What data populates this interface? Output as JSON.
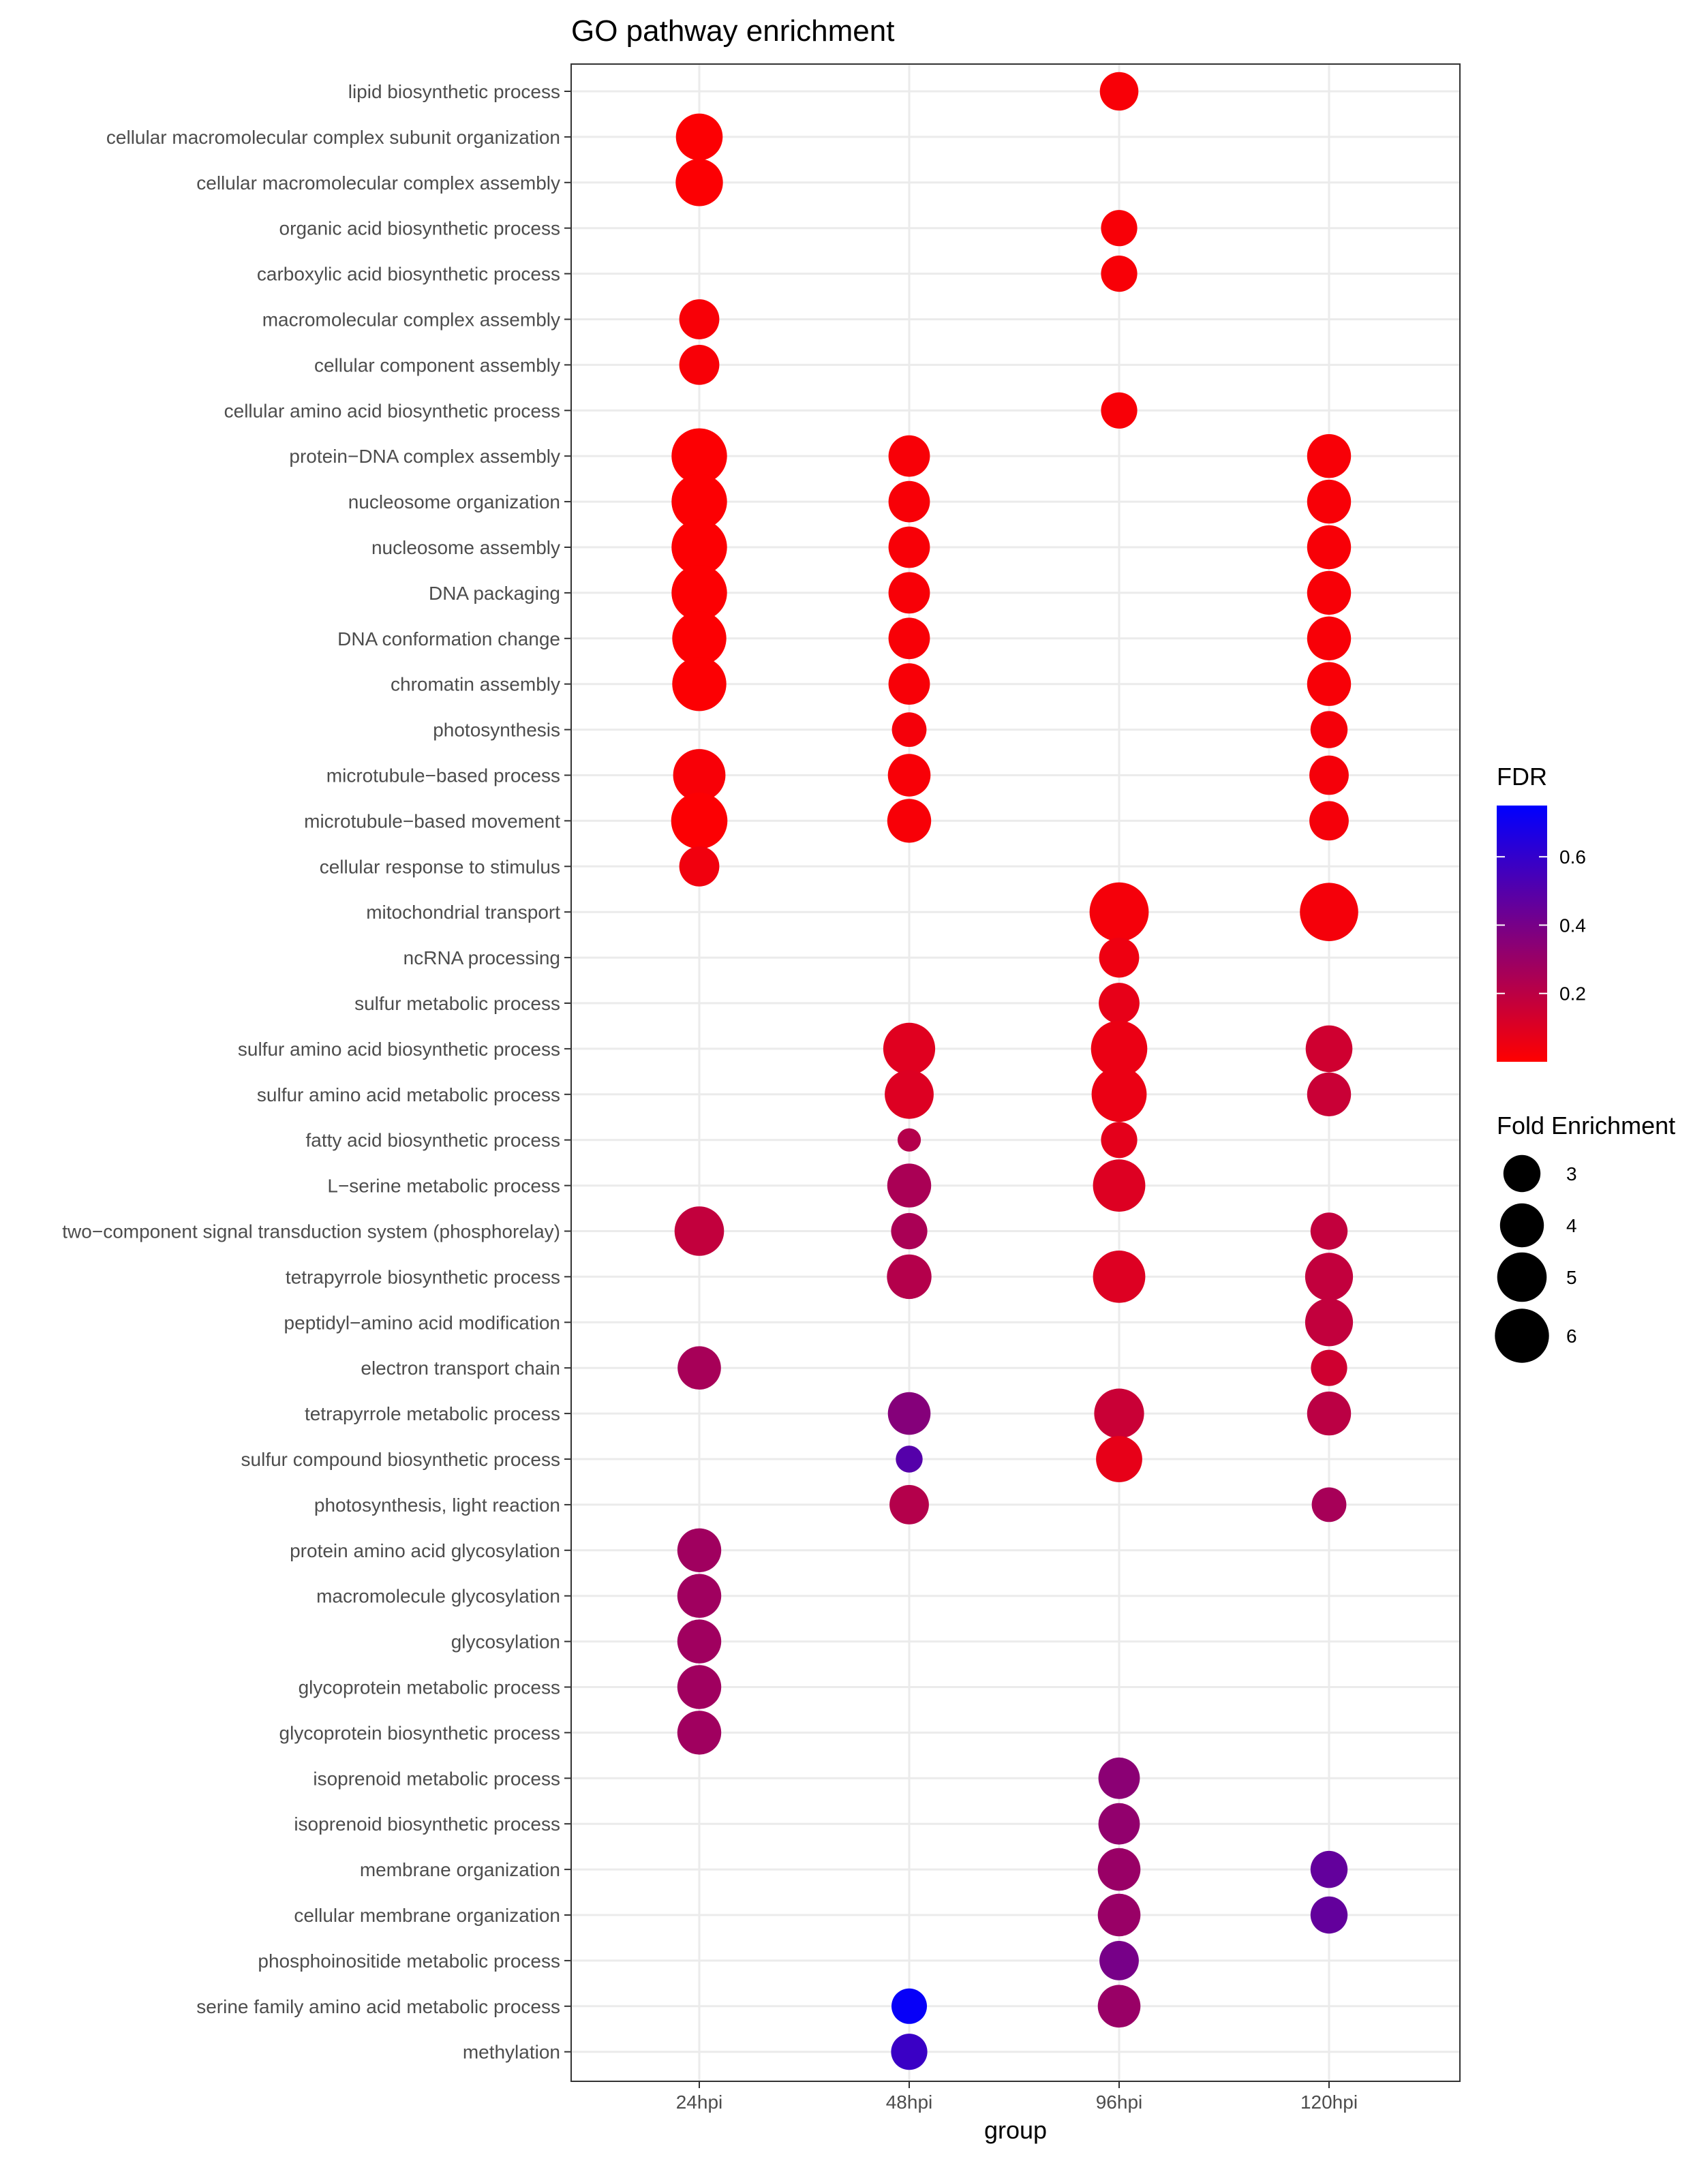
{
  "chart_data": {
    "type": "scatter",
    "title": "GO pathway enrichment",
    "xlabel": "group",
    "ylabel": "",
    "groups": [
      "24hpi",
      "48hpi",
      "96hpi",
      "120hpi"
    ],
    "terms": [
      "lipid biosynthetic process",
      "cellular macromolecular complex subunit organization",
      "cellular macromolecular complex assembly",
      "organic acid biosynthetic process",
      "carboxylic acid biosynthetic process",
      "macromolecular complex assembly",
      "cellular component assembly",
      "cellular amino acid biosynthetic process",
      "protein−DNA complex assembly",
      "nucleosome organization",
      "nucleosome assembly",
      "DNA packaging",
      "DNA conformation change",
      "chromatin assembly",
      "photosynthesis",
      "microtubule−based process",
      "microtubule−based movement",
      "cellular response to stimulus",
      "mitochondrial transport",
      "ncRNA processing",
      "sulfur metabolic process",
      "sulfur amino acid biosynthetic process",
      "sulfur amino acid metabolic process",
      "fatty acid biosynthetic process",
      "L−serine metabolic process",
      "two−component signal transduction system (phosphorelay)",
      "tetrapyrrole biosynthetic process",
      "peptidyl−amino acid modification",
      "electron transport chain",
      "tetrapyrrole metabolic process",
      "sulfur compound biosynthetic process",
      "photosynthesis, light reaction",
      "protein amino acid glycosylation",
      "macromolecule glycosylation",
      "glycosylation",
      "glycoprotein metabolic process",
      "glycoprotein biosynthetic process",
      "isoprenoid metabolic process",
      "isoprenoid biosynthetic process",
      "membrane organization",
      "cellular membrane organization",
      "phosphoinositide metabolic process",
      "serine family amino acid metabolic process",
      "methylation"
    ],
    "points": [
      {
        "term": "lipid biosynthetic process",
        "group": "96hpi",
        "fold": 3.2,
        "fdr": 0.02
      },
      {
        "term": "cellular macromolecular complex subunit organization",
        "group": "24hpi",
        "fold": 4.5,
        "fdr": 0.01
      },
      {
        "term": "cellular macromolecular complex assembly",
        "group": "24hpi",
        "fold": 4.6,
        "fdr": 0.01
      },
      {
        "term": "organic acid biosynthetic process",
        "group": "96hpi",
        "fold": 2.9,
        "fdr": 0.02
      },
      {
        "term": "carboxylic acid biosynthetic process",
        "group": "96hpi",
        "fold": 2.9,
        "fdr": 0.02
      },
      {
        "term": "macromolecular complex assembly",
        "group": "24hpi",
        "fold": 3.4,
        "fdr": 0.02
      },
      {
        "term": "cellular component assembly",
        "group": "24hpi",
        "fold": 3.4,
        "fdr": 0.02
      },
      {
        "term": "cellular amino acid biosynthetic process",
        "group": "96hpi",
        "fold": 2.9,
        "fdr": 0.02
      },
      {
        "term": "protein−DNA complex assembly",
        "group": "24hpi",
        "fold": 6.3,
        "fdr": 0.01
      },
      {
        "term": "protein−DNA complex assembly",
        "group": "48hpi",
        "fold": 3.6,
        "fdr": 0.02
      },
      {
        "term": "protein−DNA complex assembly",
        "group": "120hpi",
        "fold": 4.0,
        "fdr": 0.02
      },
      {
        "term": "nucleosome organization",
        "group": "24hpi",
        "fold": 6.3,
        "fdr": 0.01
      },
      {
        "term": "nucleosome organization",
        "group": "48hpi",
        "fold": 3.6,
        "fdr": 0.02
      },
      {
        "term": "nucleosome organization",
        "group": "120hpi",
        "fold": 4.0,
        "fdr": 0.02
      },
      {
        "term": "nucleosome assembly",
        "group": "24hpi",
        "fold": 6.3,
        "fdr": 0.01
      },
      {
        "term": "nucleosome assembly",
        "group": "48hpi",
        "fold": 3.6,
        "fdr": 0.02
      },
      {
        "term": "nucleosome assembly",
        "group": "120hpi",
        "fold": 4.0,
        "fdr": 0.02
      },
      {
        "term": "DNA packaging",
        "group": "24hpi",
        "fold": 6.3,
        "fdr": 0.01
      },
      {
        "term": "DNA packaging",
        "group": "48hpi",
        "fold": 3.6,
        "fdr": 0.02
      },
      {
        "term": "DNA packaging",
        "group": "120hpi",
        "fold": 4.0,
        "fdr": 0.02
      },
      {
        "term": "DNA conformation change",
        "group": "24hpi",
        "fold": 6.0,
        "fdr": 0.01
      },
      {
        "term": "DNA conformation change",
        "group": "48hpi",
        "fold": 3.6,
        "fdr": 0.02
      },
      {
        "term": "DNA conformation change",
        "group": "120hpi",
        "fold": 4.0,
        "fdr": 0.02
      },
      {
        "term": "chromatin assembly",
        "group": "24hpi",
        "fold": 6.0,
        "fdr": 0.01
      },
      {
        "term": "chromatin assembly",
        "group": "48hpi",
        "fold": 3.6,
        "fdr": 0.02
      },
      {
        "term": "chromatin assembly",
        "group": "120hpi",
        "fold": 4.0,
        "fdr": 0.02
      },
      {
        "term": "photosynthesis",
        "group": "48hpi",
        "fold": 2.7,
        "fdr": 0.03
      },
      {
        "term": "photosynthesis",
        "group": "120hpi",
        "fold": 3.0,
        "fdr": 0.03
      },
      {
        "term": "microtubule−based process",
        "group": "24hpi",
        "fold": 5.6,
        "fdr": 0.02
      },
      {
        "term": "microtubule−based process",
        "group": "48hpi",
        "fold": 3.8,
        "fdr": 0.02
      },
      {
        "term": "microtubule−based process",
        "group": "120hpi",
        "fold": 3.3,
        "fdr": 0.03
      },
      {
        "term": "microtubule−based movement",
        "group": "24hpi",
        "fold": 6.5,
        "fdr": 0.01
      },
      {
        "term": "microtubule−based movement",
        "group": "48hpi",
        "fold": 4.0,
        "fdr": 0.02
      },
      {
        "term": "microtubule−based movement",
        "group": "120hpi",
        "fold": 3.3,
        "fdr": 0.03
      },
      {
        "term": "cellular response to stimulus",
        "group": "24hpi",
        "fold": 3.4,
        "fdr": 0.04
      },
      {
        "term": "mitochondrial transport",
        "group": "96hpi",
        "fold": 7.2,
        "fdr": 0.03
      },
      {
        "term": "mitochondrial transport",
        "group": "120hpi",
        "fold": 7.0,
        "fdr": 0.03
      },
      {
        "term": "ncRNA processing",
        "group": "96hpi",
        "fold": 3.4,
        "fdr": 0.05
      },
      {
        "term": "sulfur metabolic process",
        "group": "96hpi",
        "fold": 3.5,
        "fdr": 0.07
      },
      {
        "term": "sulfur amino acid biosynthetic process",
        "group": "48hpi",
        "fold": 5.5,
        "fdr": 0.09
      },
      {
        "term": "sulfur amino acid biosynthetic process",
        "group": "96hpi",
        "fold": 6.5,
        "fdr": 0.06
      },
      {
        "term": "sulfur amino acid biosynthetic process",
        "group": "120hpi",
        "fold": 4.5,
        "fdr": 0.14
      },
      {
        "term": "sulfur amino acid metabolic process",
        "group": "48hpi",
        "fold": 4.9,
        "fdr": 0.1
      },
      {
        "term": "sulfur amino acid metabolic process",
        "group": "96hpi",
        "fold": 6.2,
        "fdr": 0.06
      },
      {
        "term": "sulfur amino acid metabolic process",
        "group": "120hpi",
        "fold": 4.0,
        "fdr": 0.16
      },
      {
        "term": "fatty acid biosynthetic process",
        "group": "48hpi",
        "fold": 1.8,
        "fdr": 0.22
      },
      {
        "term": "fatty acid biosynthetic process",
        "group": "96hpi",
        "fold": 2.9,
        "fdr": 0.08
      },
      {
        "term": "L−serine metabolic process",
        "group": "48hpi",
        "fold": 4.0,
        "fdr": 0.25
      },
      {
        "term": "L−serine metabolic process",
        "group": "96hpi",
        "fold": 5.6,
        "fdr": 0.1
      },
      {
        "term": "two−component signal transduction system (phosphorelay)",
        "group": "24hpi",
        "fold": 5.0,
        "fdr": 0.18
      },
      {
        "term": "two−component signal transduction system (phosphorelay)",
        "group": "48hpi",
        "fold": 2.9,
        "fdr": 0.25
      },
      {
        "term": "two−component signal transduction system (phosphorelay)",
        "group": "120hpi",
        "fold": 3.0,
        "fdr": 0.18
      },
      {
        "term": "tetrapyrrole biosynthetic process",
        "group": "48hpi",
        "fold": 4.1,
        "fdr": 0.22
      },
      {
        "term": "tetrapyrrole biosynthetic process",
        "group": "96hpi",
        "fold": 5.6,
        "fdr": 0.1
      },
      {
        "term": "tetrapyrrole biosynthetic process",
        "group": "120hpi",
        "fold": 4.7,
        "fdr": 0.18
      },
      {
        "term": "peptidyl−amino acid modification",
        "group": "120hpi",
        "fold": 4.7,
        "fdr": 0.18
      },
      {
        "term": "electron transport chain",
        "group": "24hpi",
        "fold": 3.9,
        "fdr": 0.26
      },
      {
        "term": "electron transport chain",
        "group": "120hpi",
        "fold": 2.9,
        "fdr": 0.14
      },
      {
        "term": "tetrapyrrole metabolic process",
        "group": "48hpi",
        "fold": 3.8,
        "fdr": 0.36
      },
      {
        "term": "tetrapyrrole metabolic process",
        "group": "96hpi",
        "fold": 5.1,
        "fdr": 0.16
      },
      {
        "term": "tetrapyrrole metabolic process",
        "group": "120hpi",
        "fold": 4.0,
        "fdr": 0.2
      },
      {
        "term": "sulfur compound biosynthetic process",
        "group": "48hpi",
        "fold": 2.0,
        "fdr": 0.5
      },
      {
        "term": "sulfur compound biosynthetic process",
        "group": "96hpi",
        "fold": 4.4,
        "fdr": 0.07
      },
      {
        "term": "photosynthesis, light reaction",
        "group": "48hpi",
        "fold": 3.3,
        "fdr": 0.22
      },
      {
        "term": "photosynthesis, light reaction",
        "group": "120hpi",
        "fold": 2.7,
        "fdr": 0.26
      },
      {
        "term": "protein amino acid glycosylation",
        "group": "24hpi",
        "fold": 4.0,
        "fdr": 0.28
      },
      {
        "term": "macromolecule glycosylation",
        "group": "24hpi",
        "fold": 4.0,
        "fdr": 0.28
      },
      {
        "term": "glycosylation",
        "group": "24hpi",
        "fold": 4.0,
        "fdr": 0.28
      },
      {
        "term": "glycoprotein metabolic process",
        "group": "24hpi",
        "fold": 4.0,
        "fdr": 0.28
      },
      {
        "term": "glycoprotein biosynthetic process",
        "group": "24hpi",
        "fold": 4.0,
        "fdr": 0.28
      },
      {
        "term": "isoprenoid metabolic process",
        "group": "96hpi",
        "fold": 3.6,
        "fdr": 0.34
      },
      {
        "term": "isoprenoid biosynthetic process",
        "group": "96hpi",
        "fold": 3.6,
        "fdr": 0.32
      },
      {
        "term": "membrane organization",
        "group": "96hpi",
        "fold": 3.8,
        "fdr": 0.3
      },
      {
        "term": "membrane organization",
        "group": "120hpi",
        "fold": 3.0,
        "fdr": 0.46
      },
      {
        "term": "cellular membrane organization",
        "group": "96hpi",
        "fold": 3.8,
        "fdr": 0.3
      },
      {
        "term": "cellular membrane organization",
        "group": "120hpi",
        "fold": 3.0,
        "fdr": 0.46
      },
      {
        "term": "phosphoinositide metabolic process",
        "group": "96hpi",
        "fold": 3.3,
        "fdr": 0.4
      },
      {
        "term": "serine family amino acid metabolic process",
        "group": "48hpi",
        "fold": 2.8,
        "fdr": 0.73
      },
      {
        "term": "serine family amino acid metabolic process",
        "group": "96hpi",
        "fold": 3.8,
        "fdr": 0.3
      },
      {
        "term": "methylation",
        "group": "48hpi",
        "fold": 2.9,
        "fdr": 0.58
      }
    ],
    "legend_fdr": {
      "title": "FDR",
      "ticks": [
        0.2,
        0.4,
        0.6
      ],
      "tick_labels": [
        "0.2",
        "0.4",
        "0.6"
      ],
      "range": [
        0.0,
        0.75
      ],
      "low_color": "#ff0000",
      "high_color": "#0000ff"
    },
    "legend_size": {
      "title": "Fold Enrichment",
      "values": [
        3,
        4,
        5,
        6
      ],
      "labels": [
        "3",
        "4",
        "5",
        "6"
      ]
    }
  }
}
